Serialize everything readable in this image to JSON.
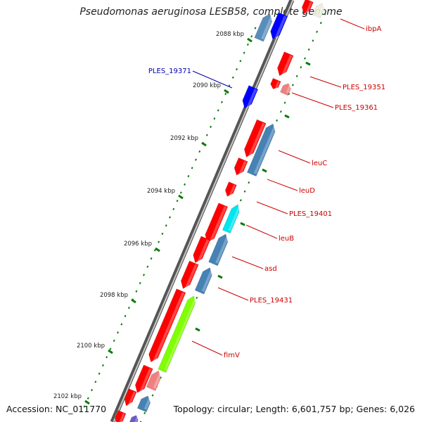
{
  "title": "Pseudomonas aeruginosa LESB58, complete genome",
  "footer": {
    "accession": "Accession: NC_011770",
    "summary": "Topology: circular; Length: 6,601,757 bp; Genes: 6,026"
  },
  "colors": {
    "backbone": "#7a7a7a",
    "tick": "#0a7a0a",
    "forward_gene": "#ff0000",
    "reverse_gene": "#4682b4",
    "pink_gene": "#f08080",
    "blue_gene": "#0000ff",
    "cyan_gene": "#00e5ee",
    "lime_gene": "#7fff00",
    "label_red": "#cc0000",
    "label_blue": "#0000aa"
  },
  "scale": {
    "ticks_kbp": [
      2088,
      2090,
      2092,
      2094,
      2096,
      2098,
      2100,
      2102
    ],
    "tick_labels": [
      "2088 kbp",
      "2090 kbp",
      "2092 kbp",
      "2094 kbp",
      "2096 kbp",
      "2098 kbp",
      "2100 kbp",
      "2102 kbp"
    ]
  },
  "gene_labels": [
    {
      "name": "ibpA",
      "color": "red"
    },
    {
      "name": "PLES_19351",
      "color": "red"
    },
    {
      "name": "PLES_19361",
      "color": "red"
    },
    {
      "name": "leuC",
      "color": "red"
    },
    {
      "name": "leuD",
      "color": "red"
    },
    {
      "name": "PLES_19401",
      "color": "red"
    },
    {
      "name": "leuB",
      "color": "red"
    },
    {
      "name": "asd",
      "color": "red"
    },
    {
      "name": "PLES_19431",
      "color": "red"
    },
    {
      "name": "fimV",
      "color": "red"
    },
    {
      "name": "PLES_19371",
      "color": "blue"
    }
  ]
}
